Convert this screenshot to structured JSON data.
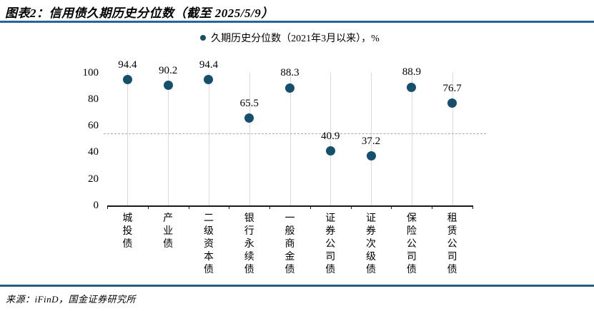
{
  "page": {
    "title": "图表2：信用债久期历史分位数（截至 2025/5/9）",
    "source": "来源：iFinD，国金证券研究所"
  },
  "legend": {
    "label": "久期历史分位数（2021年3月以来），%"
  },
  "colors": {
    "marker": "#14506E",
    "top_rule": "#2a6496",
    "bottom_rule": "#255e7e",
    "gridline": "#d9d9d9",
    "reference_line": "#ababab"
  },
  "chart_data": {
    "type": "scatter",
    "title": "信用债久期历史分位数（截至 2025/5/9）",
    "legend": [
      "久期历史分位数（2021年3月以来），%"
    ],
    "legend_position": "top-center",
    "categories": [
      "城投债",
      "产业债",
      "二级资本债",
      "银行永续债",
      "一般商金债",
      "证券公司债",
      "证券次级债",
      "保险公司债",
      "租赁公司债"
    ],
    "values": [
      94.4,
      90.2,
      94.4,
      65.5,
      88.3,
      40.9,
      37.2,
      88.9,
      76.7
    ],
    "xlabel": "",
    "ylabel": "",
    "ylim": [
      0,
      100
    ],
    "yticks": [
      0,
      20,
      40,
      60,
      80,
      100
    ],
    "reference_line_y": 54,
    "grid": "vertical-category-gridlines",
    "marker_color": "#14506E"
  }
}
